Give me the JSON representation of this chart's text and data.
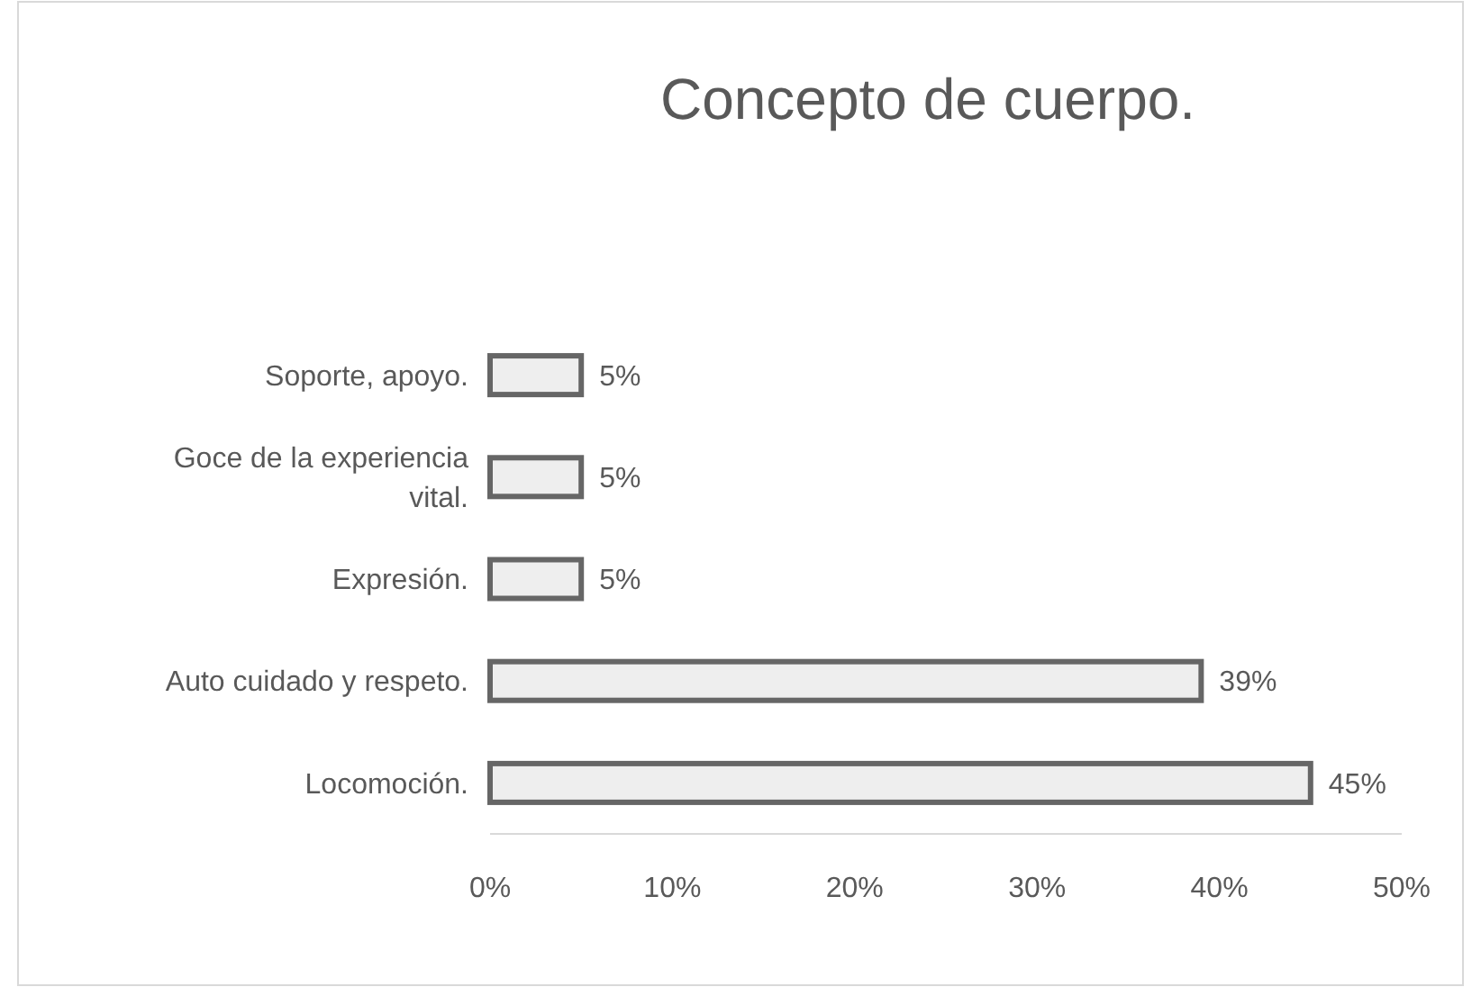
{
  "chart_data": {
    "type": "bar",
    "orientation": "horizontal",
    "title": "Concepto de cuerpo.",
    "categories": [
      "Soporte, apoyo.",
      "Goce de la experiencia vital.",
      "Expresión.",
      "Auto cuidado y respeto.",
      "Locomoción."
    ],
    "values": [
      5,
      5,
      5,
      39,
      45
    ],
    "value_labels": [
      "5%",
      "5%",
      "5%",
      "39%",
      "45%"
    ],
    "color": "#eeeeee",
    "xlim": [
      0,
      50
    ],
    "xticks": [
      {
        "value": 0,
        "label": "0%"
      },
      {
        "value": 10,
        "label": "10%"
      },
      {
        "value": 20,
        "label": "20%"
      },
      {
        "value": 30,
        "label": "30%"
      },
      {
        "value": 40,
        "label": "40%"
      },
      {
        "value": 50,
        "label": "50%"
      }
    ],
    "grid": false
  }
}
